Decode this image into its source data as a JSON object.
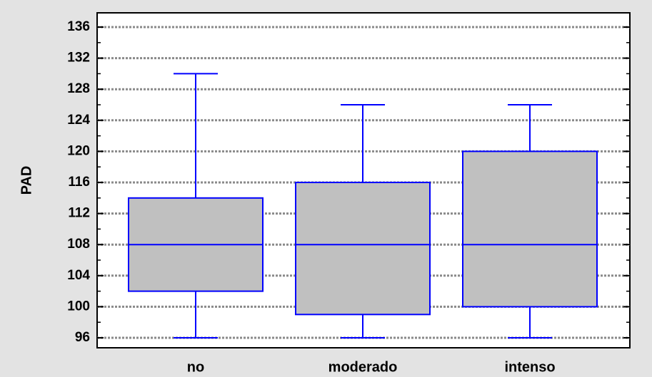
{
  "chart_data": {
    "type": "box",
    "title": "",
    "xlabel": "",
    "ylabel": "PAD",
    "ylim": [
      95,
      137
    ],
    "yticks": [
      96,
      100,
      104,
      108,
      112,
      116,
      120,
      124,
      128,
      132,
      136
    ],
    "grid": true,
    "categories": [
      "no",
      "moderado",
      "intenso"
    ],
    "boxes": [
      {
        "category": "no",
        "min": 96,
        "q1": 102,
        "median": 108,
        "q3": 114,
        "max": 130
      },
      {
        "category": "moderado",
        "min": 96,
        "q1": 99,
        "median": 108,
        "q3": 116,
        "max": 126
      },
      {
        "category": "intenso",
        "min": 96,
        "q1": 100,
        "median": 108,
        "q3": 120,
        "max": 126
      }
    ],
    "colors": {
      "background": "#e3e3e3",
      "plot_background": "#ffffff",
      "box_fill": "#c0c0c0",
      "box_stroke": "#0000ff",
      "grid": "#8a8a8a",
      "axis": "#000000"
    }
  }
}
